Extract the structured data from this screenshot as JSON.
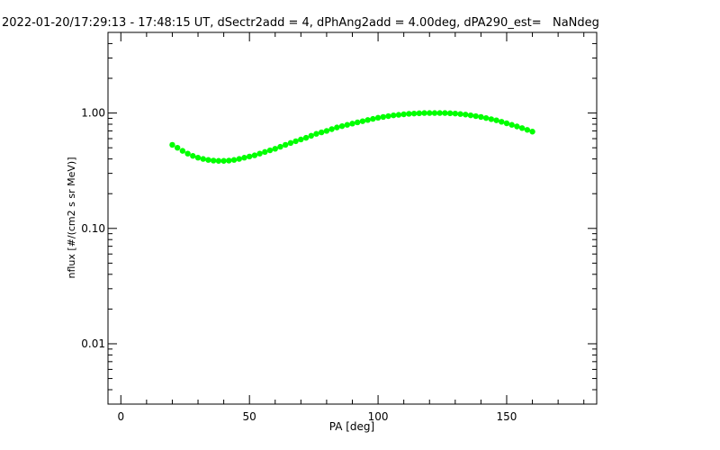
{
  "chart_data": {
    "type": "scatter",
    "title": "2022-01-20/17:29:13 - 17:48:15 UT, dSectr2add = 4, dPhAng2add = 4.00deg, dPA290_est=   NaNdeg",
    "xlabel": "PA [deg]",
    "ylabel": "nflux [#/(cm2 s sr MeV)]",
    "xlim": [
      -5,
      185
    ],
    "ylim": [
      0.003,
      5
    ],
    "yscale": "log",
    "xticks": [
      0,
      50,
      100,
      150
    ],
    "xtick_labels": [
      "0",
      "50",
      "100",
      "150"
    ],
    "yticks": [
      0.01,
      0.1,
      1.0
    ],
    "ytick_labels": [
      "0.01",
      "0.10",
      "1.00"
    ],
    "grid": false,
    "series_color": "#00ff00",
    "x": [
      20,
      22,
      24,
      26,
      28,
      30,
      32,
      34,
      36,
      38,
      40,
      42,
      44,
      46,
      48,
      50,
      52,
      54,
      56,
      58,
      60,
      62,
      64,
      66,
      68,
      70,
      72,
      74,
      76,
      78,
      80,
      82,
      84,
      86,
      88,
      90,
      92,
      94,
      96,
      98,
      100,
      102,
      104,
      106,
      108,
      110,
      112,
      114,
      116,
      118,
      120,
      122,
      124,
      126,
      128,
      130,
      132,
      134,
      136,
      138,
      140,
      142,
      144,
      146,
      148,
      150,
      152,
      154,
      156,
      158,
      160
    ],
    "y": [
      0.53,
      0.5,
      0.47,
      0.445,
      0.425,
      0.41,
      0.4,
      0.392,
      0.387,
      0.385,
      0.385,
      0.387,
      0.392,
      0.4,
      0.41,
      0.42,
      0.43,
      0.445,
      0.46,
      0.475,
      0.49,
      0.51,
      0.53,
      0.55,
      0.57,
      0.59,
      0.61,
      0.635,
      0.66,
      0.68,
      0.7,
      0.725,
      0.75,
      0.77,
      0.79,
      0.81,
      0.83,
      0.85,
      0.87,
      0.89,
      0.91,
      0.925,
      0.94,
      0.955,
      0.965,
      0.975,
      0.985,
      0.99,
      0.995,
      1.0,
      1.0,
      1.0,
      1.0,
      1.0,
      0.995,
      0.99,
      0.98,
      0.97,
      0.955,
      0.94,
      0.925,
      0.905,
      0.885,
      0.865,
      0.84,
      0.815,
      0.79,
      0.765,
      0.74,
      0.715,
      0.69
    ]
  }
}
